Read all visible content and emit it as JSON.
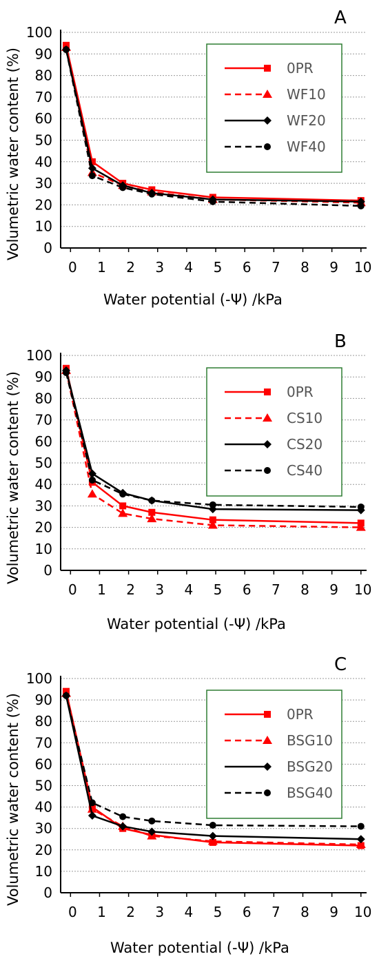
{
  "figure": {
    "panels": [
      {
        "letter": "A",
        "ylabel": "Volumetric  water content (%)",
        "xlabel": "Water potential (-Ψ) /kPa"
      },
      {
        "letter": "B",
        "ylabel": "Volumetric  water content (%)",
        "xlabel": "Water potential (-Ψ) /kPa"
      },
      {
        "letter": "C",
        "ylabel": "Volumetric  water content (%)",
        "xlabel": "Water potential (-Ψ) /kPa"
      }
    ],
    "colors": {
      "red": "#ff0000",
      "black": "#000000",
      "legend_border": "#2e7d32",
      "grid": "#999999"
    }
  },
  "chart_data": [
    {
      "type": "line",
      "title": "A",
      "xlabel": "Water potential (-Ψ) /kPa",
      "ylabel": "Volumetric  water content (%)",
      "x_ticks": [
        "0",
        "1",
        "2",
        "3",
        "4",
        "5",
        "6",
        "7",
        "8",
        "9",
        "10"
      ],
      "x_tick_positions": [
        0,
        1,
        2,
        3,
        4,
        5,
        6,
        7,
        8,
        9,
        10
      ],
      "y_ticks": [
        "0",
        "10",
        "20",
        "30",
        "40",
        "50",
        "60",
        "70",
        "80",
        "90",
        "100"
      ],
      "ylim": [
        0,
        100
      ],
      "xlim": [
        -0.15,
        10.1
      ],
      "grid": true,
      "legend_position": "upper-right",
      "x": [
        -0.15,
        0.75,
        1.8,
        2.8,
        4.9,
        10
      ],
      "series": [
        {
          "name": "0PR",
          "color": "#ff0000",
          "dash": false,
          "marker": "square",
          "values": [
            94,
            40,
            30,
            27,
            23.5,
            22
          ]
        },
        {
          "name": "WF10",
          "color": "#ff0000",
          "dash": true,
          "marker": "triangle",
          "values": [
            93,
            35,
            29,
            26,
            22.5,
            21
          ]
        },
        {
          "name": "WF20",
          "color": "#000000",
          "dash": false,
          "marker": "diamond",
          "values": [
            92,
            37,
            29,
            25.5,
            22.5,
            21.5
          ]
        },
        {
          "name": "WF40",
          "color": "#000000",
          "dash": true,
          "marker": "circle",
          "values": [
            92,
            33.5,
            28,
            25,
            21.5,
            19.5
          ]
        }
      ]
    },
    {
      "type": "line",
      "title": "B",
      "xlabel": "Water potential (-Ψ) /kPa",
      "ylabel": "Volumetric  water content (%)",
      "x_ticks": [
        "0",
        "1",
        "2",
        "3",
        "4",
        "5",
        "6",
        "7",
        "8",
        "9",
        "10"
      ],
      "x_tick_positions": [
        0,
        1,
        2,
        3,
        4,
        5,
        6,
        7,
        8,
        9,
        10
      ],
      "y_ticks": [
        "0",
        "10",
        "20",
        "30",
        "40",
        "50",
        "60",
        "70",
        "80",
        "90",
        "100"
      ],
      "ylim": [
        0,
        100
      ],
      "xlim": [
        -0.15,
        10.1
      ],
      "grid": true,
      "legend_position": "upper-right",
      "x": [
        -0.15,
        0.75,
        1.8,
        2.8,
        4.9,
        10
      ],
      "series": [
        {
          "name": "0PR",
          "color": "#ff0000",
          "dash": false,
          "marker": "square",
          "values": [
            94,
            41,
            30,
            27,
            23.5,
            22
          ]
        },
        {
          "name": "CS10",
          "color": "#ff0000",
          "dash": true,
          "marker": "triangle",
          "values": [
            93,
            35.5,
            26.5,
            24,
            21,
            20
          ]
        },
        {
          "name": "CS20",
          "color": "#000000",
          "dash": false,
          "marker": "diamond",
          "values": [
            93,
            45,
            36,
            32.5,
            28.5,
            28
          ]
        },
        {
          "name": "CS40",
          "color": "#000000",
          "dash": true,
          "marker": "circle",
          "values": [
            92,
            42,
            35.5,
            32.5,
            30.5,
            29.5
          ]
        }
      ]
    },
    {
      "type": "line",
      "title": "C",
      "xlabel": "Water potential (-Ψ) /kPa",
      "ylabel": "Volumetric  water content (%)",
      "x_ticks": [
        "0",
        "1",
        "2",
        "3",
        "4",
        "5",
        "6",
        "7",
        "8",
        "9",
        "10"
      ],
      "x_tick_positions": [
        0,
        1,
        2,
        3,
        4,
        5,
        6,
        7,
        8,
        9,
        10
      ],
      "y_ticks": [
        "0",
        "10",
        "20",
        "30",
        "40",
        "50",
        "60",
        "70",
        "80",
        "90",
        "100"
      ],
      "ylim": [
        0,
        100
      ],
      "xlim": [
        -0.15,
        10.1
      ],
      "grid": true,
      "legend_position": "upper-right",
      "x": [
        -0.15,
        0.75,
        1.8,
        2.8,
        4.9,
        10
      ],
      "series": [
        {
          "name": "0PR",
          "color": "#ff0000",
          "dash": false,
          "marker": "square",
          "values": [
            94,
            40,
            30,
            27,
            23.5,
            22
          ]
        },
        {
          "name": "BSG10",
          "color": "#ff0000",
          "dash": true,
          "marker": "triangle",
          "values": [
            93,
            39,
            31,
            26.5,
            24,
            22.5
          ]
        },
        {
          "name": "BSG20",
          "color": "#000000",
          "dash": false,
          "marker": "diamond",
          "values": [
            92,
            36,
            31,
            28.5,
            26.5,
            25
          ]
        },
        {
          "name": "BSG40",
          "color": "#000000",
          "dash": true,
          "marker": "circle",
          "values": [
            92,
            42,
            35.5,
            33.5,
            31.5,
            31
          ]
        }
      ]
    }
  ]
}
